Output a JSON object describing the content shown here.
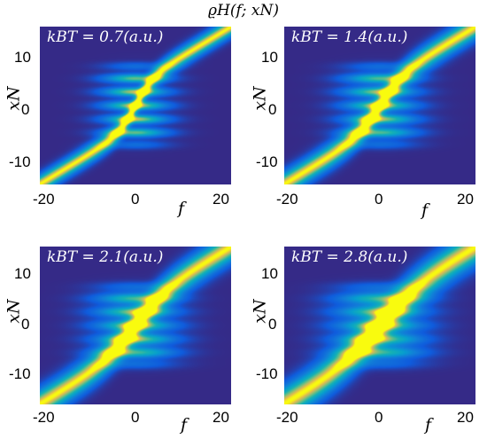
{
  "figure_title": "ϱH(f; xN)",
  "chart_data": [
    {
      "type": "heatmap",
      "title": "kBT = 0.7(a.u.)",
      "xlabel": "f",
      "ylabel": "xN",
      "xlim": [
        -20,
        20
      ],
      "ylim": [
        -15,
        15
      ],
      "xticks": [
        -20,
        0,
        20
      ],
      "yticks": [
        -10,
        0,
        10
      ],
      "kBT": 0.7,
      "colormap": "parula"
    },
    {
      "type": "heatmap",
      "title": "kBT = 1.4(a.u.)",
      "xlabel": "f",
      "ylabel": "xN",
      "xlim": [
        -20,
        20
      ],
      "ylim": [
        -15,
        15
      ],
      "xticks": [
        -20,
        0,
        20
      ],
      "yticks": [
        -10,
        0,
        10
      ],
      "kBT": 1.4,
      "colormap": "parula"
    },
    {
      "type": "heatmap",
      "title": "kBT = 2.1(a.u.)",
      "xlabel": "f",
      "ylabel": "xN",
      "xlim": [
        -20,
        20
      ],
      "ylim": [
        -15,
        15
      ],
      "xticks": [
        -20,
        0,
        20
      ],
      "yticks": [
        -10,
        0,
        10
      ],
      "kBT": 2.1,
      "colormap": "parula"
    },
    {
      "type": "heatmap",
      "title": "kBT = 2.8(a.u.)",
      "xlabel": "f",
      "ylabel": "xN",
      "xlim": [
        -20,
        20
      ],
      "ylim": [
        -15,
        15
      ],
      "xticks": [
        -20,
        0,
        20
      ],
      "yticks": [
        -10,
        0,
        10
      ],
      "kBT": 2.8,
      "colormap": "parula"
    }
  ]
}
